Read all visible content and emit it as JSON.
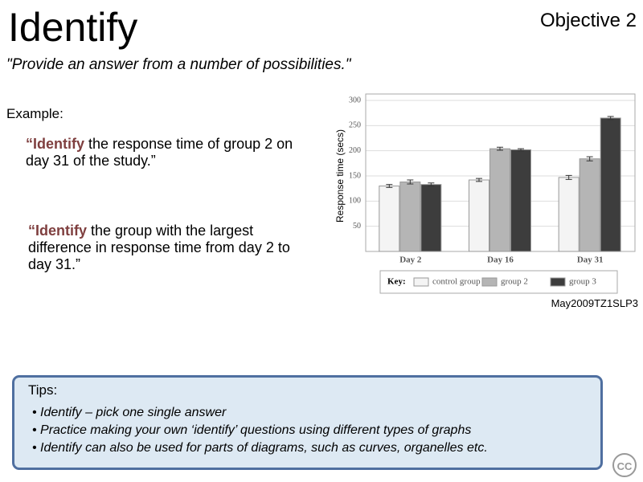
{
  "title": "Identify",
  "objective": "Objective 2",
  "subtitle": "\"Provide an answer from a number of possibilities.\"",
  "example_label": "Example:",
  "questions": [
    {
      "bold": "“Identify",
      "rest": " the response time of group 2 on day 31 of the study.”"
    },
    {
      "bold": "“Identify",
      "rest": " the group with the largest difference in response time from day 2 to day 31.”"
    }
  ],
  "source": "May2009TZ1SLP3",
  "tips": {
    "heading": "Tips:",
    "items": [
      "• Identify – pick one single answer",
      "• Practice making your own ‘identify’ questions using different types of graphs",
      "• Identify can also be used for parts of diagrams, such as curves, organelles etc."
    ]
  },
  "cc": "CC",
  "chart_data": {
    "type": "bar",
    "y_label": "Response time (secs)",
    "legend_title": "Key:",
    "categories": [
      "Day 2",
      "Day 16",
      "Day 31"
    ],
    "series": [
      {
        "name": "control group",
        "color": "#f4f4f4",
        "values": [
          130,
          142,
          147
        ],
        "errors": [
          3,
          3,
          4
        ]
      },
      {
        "name": "group 2",
        "color": "#b5b5b5",
        "values": [
          138,
          204,
          184
        ],
        "errors": [
          4,
          3,
          4
        ]
      },
      {
        "name": "group 3",
        "color": "#3d3d3d",
        "values": [
          133,
          202,
          265
        ],
        "errors": [
          3,
          2,
          3
        ]
      }
    ],
    "ylim": [
      0,
      300
    ],
    "yticks": [
      50,
      100,
      150,
      200,
      250,
      300
    ],
    "grid": true,
    "legend": "bottom"
  }
}
